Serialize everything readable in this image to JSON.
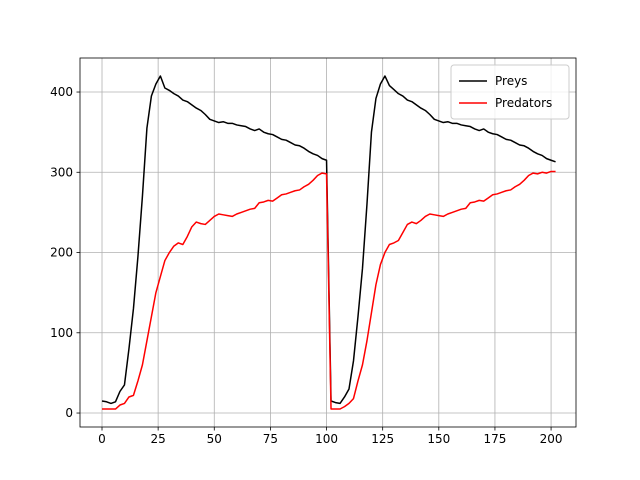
{
  "chart_data": {
    "type": "line",
    "x": [
      0,
      2,
      4,
      6,
      8,
      10,
      12,
      14,
      16,
      18,
      20,
      22,
      24,
      26,
      28,
      30,
      32,
      34,
      36,
      38,
      40,
      42,
      44,
      46,
      48,
      50,
      52,
      54,
      56,
      58,
      60,
      62,
      64,
      66,
      68,
      70,
      72,
      74,
      76,
      78,
      80,
      82,
      84,
      86,
      88,
      90,
      92,
      94,
      96,
      98,
      100,
      102,
      104,
      106,
      108,
      110,
      112,
      114,
      116,
      118,
      120,
      122,
      124,
      126,
      128,
      130,
      132,
      134,
      136,
      138,
      140,
      142,
      144,
      146,
      148,
      150,
      152,
      154,
      156,
      158,
      160,
      162,
      164,
      166,
      168,
      170,
      172,
      174,
      176,
      178,
      180,
      182,
      184,
      186,
      188,
      190,
      192,
      194,
      196,
      198,
      200,
      202
    ],
    "series": [
      {
        "name": "Preys",
        "color": "#000000",
        "values": [
          15,
          14,
          12,
          14,
          27,
          35,
          80,
          130,
          195,
          270,
          355,
          395,
          410,
          420,
          405,
          402,
          398,
          395,
          390,
          388,
          384,
          380,
          377,
          372,
          366,
          364,
          362,
          363,
          361,
          361,
          359,
          358,
          357,
          354,
          352,
          354,
          350,
          348,
          347,
          344,
          341,
          340,
          337,
          334,
          333,
          330,
          326,
          323,
          321,
          317,
          315,
          15,
          13,
          12,
          20,
          30,
          65,
          120,
          180,
          260,
          350,
          392,
          410,
          420,
          408,
          403,
          398,
          395,
          390,
          388,
          384,
          380,
          377,
          372,
          366,
          364,
          362,
          363,
          361,
          361,
          359,
          358,
          357,
          354,
          352,
          354,
          350,
          348,
          347,
          344,
          341,
          340,
          337,
          334,
          333,
          330,
          326,
          323,
          321,
          317,
          315,
          313
        ]
      },
      {
        "name": "Predators",
        "color": "#ff0000",
        "values": [
          5,
          5,
          5,
          5,
          10,
          12,
          20,
          22,
          40,
          60,
          90,
          120,
          150,
          170,
          190,
          200,
          208,
          212,
          210,
          220,
          232,
          238,
          236,
          235,
          240,
          245,
          248,
          247,
          246,
          245,
          248,
          250,
          252,
          254,
          255,
          262,
          263,
          265,
          264,
          268,
          272,
          273,
          275,
          277,
          278,
          282,
          285,
          290,
          296,
          299,
          298,
          5,
          5,
          5,
          8,
          12,
          18,
          40,
          60,
          90,
          125,
          160,
          185,
          200,
          210,
          212,
          215,
          225,
          235,
          238,
          236,
          240,
          245,
          248,
          247,
          246,
          245,
          248,
          250,
          252,
          254,
          255,
          262,
          263,
          265,
          264,
          268,
          272,
          273,
          275,
          277,
          278,
          282,
          285,
          290,
          296,
          299,
          298,
          300,
          299,
          301,
          301
        ]
      }
    ],
    "xlim": [
      -9.8,
      211.1
    ],
    "ylim": [
      -17.4,
      442.4
    ],
    "xticks": [
      0,
      25,
      50,
      75,
      100,
      125,
      150,
      175,
      200
    ],
    "yticks": [
      0,
      100,
      200,
      300,
      400
    ],
    "grid": true,
    "legend": "upper right"
  }
}
